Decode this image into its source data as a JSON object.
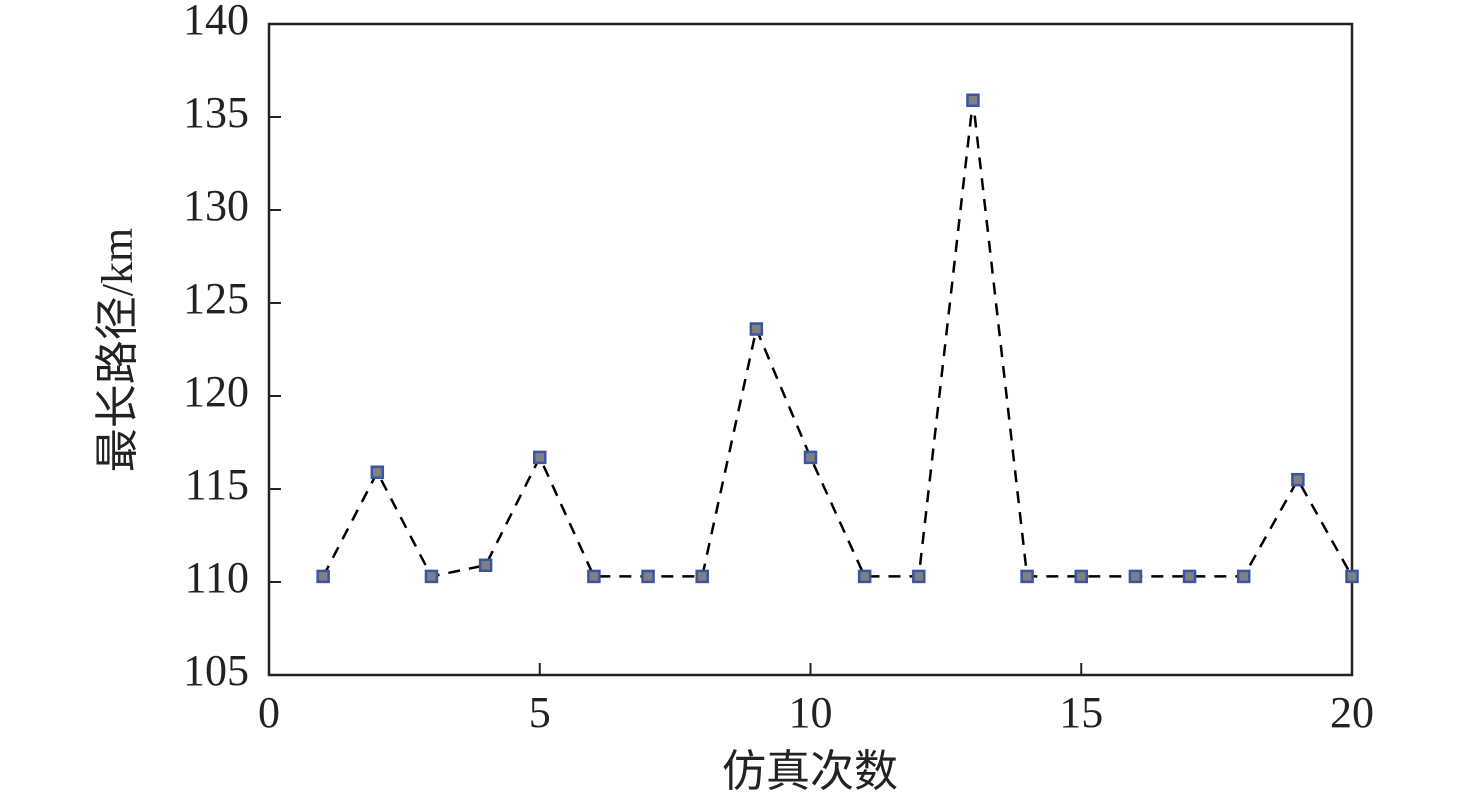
{
  "chart_data": {
    "type": "line",
    "xlabel": "仿真次数",
    "ylabel": "最长路径/km",
    "x": [
      1,
      2,
      3,
      4,
      5,
      6,
      7,
      8,
      9,
      10,
      11,
      12,
      13,
      14,
      15,
      16,
      17,
      18,
      19,
      20
    ],
    "values": [
      110.3,
      115.9,
      110.3,
      110.9,
      116.7,
      110.3,
      110.3,
      110.3,
      123.6,
      116.7,
      110.3,
      110.3,
      135.9,
      110.3,
      110.3,
      110.3,
      110.3,
      110.3,
      115.5,
      110.3
    ],
    "color": "#000000",
    "marker_edge": "#3a55a4",
    "marker_fill": "#808080",
    "dashed": true,
    "xlim": [
      0,
      20
    ],
    "xticks": [
      0,
      5,
      10,
      15,
      20
    ],
    "ylim": [
      105,
      140
    ],
    "yticks": [
      105,
      110,
      115,
      120,
      125,
      130,
      135,
      140
    ],
    "grid": false
  }
}
